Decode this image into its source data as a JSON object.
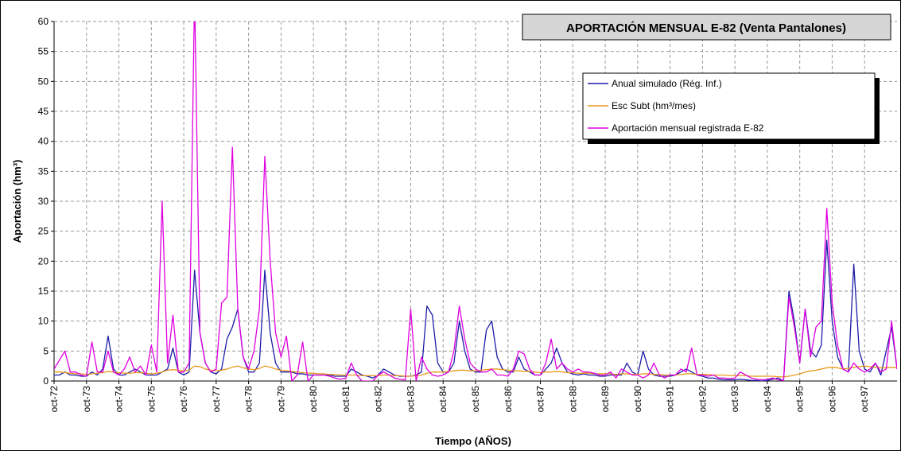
{
  "chart_data": {
    "type": "line",
    "title": "APORTACIÓN MENSUAL E-82 (Venta Pantalones)",
    "y_label": "Aportación (hm³)",
    "x_label": "Tiempo (AÑOS)",
    "legend": "upper right",
    "grid": true,
    "ylim": [
      0,
      60
    ],
    "yticks": [
      0,
      5,
      10,
      15,
      20,
      25,
      30,
      35,
      40,
      45,
      50,
      55,
      60
    ],
    "categories": [
      "oct-72",
      null,
      null,
      null,
      null,
      null,
      "oct-73",
      null,
      null,
      null,
      null,
      null,
      "oct-74",
      null,
      null,
      null,
      null,
      null,
      "oct-75",
      null,
      null,
      null,
      null,
      null,
      "oct-76",
      null,
      null,
      null,
      null,
      null,
      "oct-77",
      null,
      null,
      null,
      null,
      null,
      "oct-78",
      null,
      null,
      null,
      null,
      null,
      "oct-79",
      null,
      null,
      null,
      null,
      null,
      "oct-80",
      null,
      null,
      null,
      null,
      null,
      "oct-81",
      null,
      null,
      null,
      null,
      null,
      "oct-82",
      null,
      null,
      null,
      null,
      null,
      "oct-83",
      null,
      null,
      null,
      null,
      null,
      "oct-84",
      null,
      null,
      null,
      null,
      null,
      "oct-85",
      null,
      null,
      null,
      null,
      null,
      "oct-86",
      null,
      null,
      null,
      null,
      null,
      "oct-87",
      null,
      null,
      null,
      null,
      null,
      "oct-88",
      null,
      null,
      null,
      null,
      null,
      "oct-89",
      null,
      null,
      null,
      null,
      null,
      "oct-90",
      null,
      null,
      null,
      null,
      null,
      "oct-91",
      null,
      null,
      null,
      null,
      null,
      "oct-92",
      null,
      null,
      null,
      null,
      null,
      "oct-93",
      null,
      null,
      null,
      null,
      null,
      "oct-94",
      null,
      null,
      null,
      null,
      null,
      "oct-95",
      null,
      null,
      null,
      null,
      null,
      "oct-96",
      null,
      null,
      null,
      null,
      null,
      "oct-97",
      null,
      null,
      null,
      null,
      null,
      null
    ],
    "series": [
      {
        "name": "Anual simulado (Rég. Inf.)",
        "color": "#1c1ca8",
        "values": [
          1,
          1,
          1.5,
          1,
          1,
          0.8,
          0.8,
          1.5,
          1,
          2,
          7.5,
          2,
          1,
          1,
          1.5,
          2,
          1.5,
          1,
          1,
          1,
          1.5,
          2,
          5.5,
          1.5,
          1,
          1.5,
          18.5,
          8,
          3,
          1.5,
          1.2,
          2,
          7,
          9,
          12,
          4,
          1.5,
          1.5,
          3,
          18.5,
          8,
          3,
          1.5,
          1.5,
          1.5,
          1.2,
          1.2,
          1,
          1,
          1,
          1,
          1,
          0.8,
          0.8,
          0.8,
          2,
          1.5,
          1,
          0.8,
          0.5,
          1,
          2,
          1.5,
          1,
          0.8,
          0.8,
          0.8,
          1,
          1.5,
          12.5,
          11,
          3,
          1.5,
          1.5,
          3,
          10,
          5,
          2,
          1.5,
          1.5,
          8.5,
          10,
          4,
          2,
          1.5,
          1.5,
          4,
          2,
          1.5,
          1,
          1,
          2,
          3,
          5.5,
          3,
          1.5,
          1.2,
          1,
          1.2,
          1,
          1,
          0.8,
          0.8,
          1,
          1,
          1,
          3,
          1.5,
          1,
          5,
          2,
          1,
          0.8,
          0.8,
          0.8,
          1,
          1.5,
          2,
          1.5,
          1,
          0.8,
          0.5,
          0.5,
          0.3,
          0.2,
          0.2,
          0.2,
          0.3,
          0.2,
          0.1,
          0.1,
          0,
          0.1,
          0.3,
          0.5,
          0,
          15,
          10,
          3,
          12,
          5,
          4,
          6,
          23.5,
          10,
          4,
          2,
          1.5,
          19.5,
          5,
          2,
          1.5,
          3,
          1,
          5,
          9,
          2
        ]
      },
      {
        "name": "Esc Subt (hm³/mes)",
        "color": "#e89a1e",
        "values": [
          1.5,
          1.5,
          1.4,
          1.3,
          1.2,
          1.2,
          1.1,
          1.2,
          1.3,
          1.4,
          1.6,
          1.5,
          1.4,
          1.3,
          1.3,
          1.4,
          1.4,
          1.3,
          1.2,
          1.3,
          1.5,
          1.8,
          1.9,
          1.8,
          1.7,
          1.8,
          2.5,
          2.4,
          2,
          1.8,
          1.7,
          1.8,
          2,
          2.3,
          2.5,
          2.2,
          2,
          1.9,
          2.1,
          2.5,
          2.3,
          2,
          1.8,
          1.7,
          1.6,
          1.5,
          1.4,
          1.3,
          1.3,
          1.2,
          1.2,
          1.1,
          1.1,
          1,
          1,
          1,
          1,
          0.9,
          0.9,
          0.9,
          0.9,
          1,
          1,
          0.9,
          0.9,
          0.8,
          0.8,
          0.9,
          1,
          1.3,
          1.5,
          1.5,
          1.5,
          1.6,
          1.7,
          1.8,
          1.8,
          1.7,
          1.7,
          1.8,
          1.9,
          2,
          2,
          1.9,
          1.8,
          1.7,
          1.7,
          1.6,
          1.6,
          1.5,
          1.4,
          1.5,
          1.5,
          1.6,
          1.5,
          1.4,
          1.4,
          1.3,
          1.3,
          1.3,
          1.2,
          1.2,
          1.2,
          1.2,
          1.1,
          1.2,
          1.2,
          1.1,
          1.1,
          1.2,
          1.2,
          1.1,
          1.1,
          1,
          1,
          1,
          1.1,
          1.2,
          1.2,
          1.1,
          1.1,
          1.1,
          1,
          1,
          1,
          0.9,
          0.9,
          0.9,
          0.9,
          0.8,
          0.8,
          0.8,
          0.8,
          0.8,
          0.7,
          0.7,
          0.8,
          1,
          1.2,
          1.5,
          1.7,
          1.8,
          2,
          2.2,
          2.3,
          2.2,
          2,
          2.1,
          2.3,
          2.4,
          2.5,
          2.4,
          2.3,
          2.2,
          2.2,
          2.3,
          2.2
        ]
      },
      {
        "name": "Aportación mensual registrada E-82",
        "color": "#e000e0",
        "values": [
          2,
          3.5,
          5,
          1.5,
          1.5,
          1,
          0.8,
          6.5,
          1.5,
          1.5,
          5,
          1.5,
          1,
          2,
          4,
          1.5,
          2.5,
          1,
          6,
          1.5,
          30,
          3,
          11,
          1.5,
          1.5,
          3,
          65,
          8,
          3,
          1.5,
          2,
          13,
          14,
          39,
          12,
          4,
          2,
          5,
          12,
          37.5,
          20,
          8,
          4,
          7.5,
          0,
          1,
          6.5,
          0,
          1,
          1,
          1,
          0.8,
          0.5,
          0.3,
          0.5,
          3,
          1,
          0,
          0,
          0,
          1,
          1.5,
          1,
          0.5,
          0.3,
          0.2,
          12,
          0,
          4,
          2,
          1,
          0.8,
          1,
          1.5,
          5,
          12.5,
          7,
          3,
          2,
          1.5,
          1.5,
          2,
          1,
          1,
          0.8,
          2,
          5,
          4.5,
          2,
          1,
          1,
          3,
          7,
          2,
          3,
          2,
          1.5,
          2,
          1.5,
          1.5,
          1.3,
          1,
          1,
          1.5,
          0.5,
          2,
          1.5,
          1,
          1,
          0.5,
          1,
          3,
          1,
          0.5,
          1,
          1,
          2,
          1.5,
          5.5,
          1,
          1,
          0.8,
          1,
          0.5,
          0.5,
          0.4,
          0.5,
          1.5,
          1,
          0.5,
          0.3,
          0.2,
          0.3,
          0.5,
          0.2,
          0.1,
          14,
          9,
          3,
          12,
          4,
          9,
          10,
          28.8,
          13,
          6,
          2,
          1.5,
          3,
          2,
          1.5,
          2,
          3,
          1.5,
          2,
          10,
          2
        ]
      }
    ]
  }
}
